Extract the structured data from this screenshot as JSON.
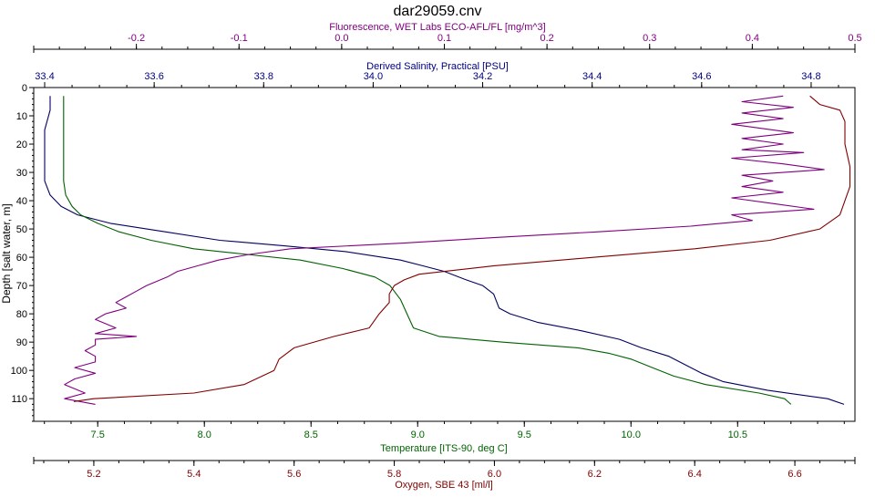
{
  "chart_data": {
    "type": "line",
    "title": "dar29059.cnv",
    "y_axis": {
      "label": "Depth [salt water, m]",
      "range": [
        0,
        118
      ],
      "inverted": true,
      "ticks": [
        0,
        10,
        20,
        30,
        40,
        50,
        60,
        70,
        80,
        90,
        100,
        110
      ]
    },
    "x_axes": [
      {
        "id": "fluor",
        "label": "Fluorescence, WET Labs ECO-AFL/FL [mg/m^3]",
        "position": "top-outer",
        "color": "#800080",
        "range": [
          -0.3,
          0.5
        ],
        "ticks": [
          -0.2,
          -0.1,
          0.0,
          0.1,
          0.2,
          0.3,
          0.4,
          0.5
        ],
        "tick_labels": [
          "-0.2",
          "-0.1",
          "0.0",
          "0.1",
          "0.2",
          "0.3",
          "0.4",
          "0.5"
        ]
      },
      {
        "id": "sal",
        "label": "Derived Salinity, Practical [PSU]",
        "position": "top-inner",
        "color": "#000080",
        "range": [
          33.38,
          34.88
        ],
        "ticks": [
          33.4,
          33.6,
          33.8,
          34.0,
          34.2,
          34.4,
          34.6,
          34.8
        ],
        "tick_labels": [
          "33.4",
          "33.6",
          "33.8",
          "34.0",
          "34.2",
          "34.4",
          "34.6",
          "34.8"
        ]
      },
      {
        "id": "temp",
        "label": "Temperature [ITS-90, deg C]",
        "position": "bottom-inner",
        "color": "#006400",
        "range": [
          7.2,
          11.05
        ],
        "ticks": [
          7.5,
          8.0,
          8.5,
          9.0,
          9.5,
          10.0,
          10.5
        ],
        "tick_labels": [
          "7.5",
          "8.0",
          "8.5",
          "9.0",
          "9.5",
          "10.0",
          "10.5"
        ]
      },
      {
        "id": "oxy",
        "label": "Oxygen, SBE 43 [ml/l]",
        "position": "bottom-outer",
        "color": "#800000",
        "range": [
          5.08,
          6.72
        ],
        "ticks": [
          5.2,
          5.4,
          5.6,
          5.8,
          6.0,
          6.2,
          6.4,
          6.6
        ],
        "tick_labels": [
          "5.2",
          "5.4",
          "5.6",
          "5.8",
          "6.0",
          "6.2",
          "6.4",
          "6.6"
        ]
      }
    ],
    "series": [
      {
        "axis": "sal",
        "color": "#000060",
        "points": [
          [
            33.41,
            3
          ],
          [
            33.41,
            8
          ],
          [
            33.4,
            15
          ],
          [
            33.4,
            25
          ],
          [
            33.4,
            33
          ],
          [
            33.41,
            38
          ],
          [
            33.43,
            42
          ],
          [
            33.46,
            45
          ],
          [
            33.52,
            48
          ],
          [
            33.62,
            51
          ],
          [
            33.72,
            54
          ],
          [
            33.84,
            56
          ],
          [
            33.95,
            58
          ],
          [
            34.05,
            61
          ],
          [
            34.09,
            63
          ],
          [
            34.13,
            65
          ],
          [
            34.17,
            68
          ],
          [
            34.2,
            70
          ],
          [
            34.22,
            73
          ],
          [
            34.23,
            78
          ],
          [
            34.25,
            80
          ],
          [
            34.3,
            83
          ],
          [
            34.38,
            86
          ],
          [
            34.45,
            89
          ],
          [
            34.49,
            92
          ],
          [
            34.54,
            95
          ],
          [
            34.57,
            98
          ],
          [
            34.6,
            101
          ],
          [
            34.64,
            104
          ],
          [
            34.72,
            107
          ],
          [
            34.83,
            110
          ],
          [
            34.86,
            112
          ]
        ]
      },
      {
        "axis": "temp",
        "color": "#006000",
        "points": [
          [
            7.34,
            3
          ],
          [
            7.34,
            8
          ],
          [
            7.34,
            15
          ],
          [
            7.34,
            25
          ],
          [
            7.34,
            33
          ],
          [
            7.35,
            38
          ],
          [
            7.38,
            42
          ],
          [
            7.42,
            45
          ],
          [
            7.5,
            48
          ],
          [
            7.6,
            51
          ],
          [
            7.75,
            54
          ],
          [
            7.95,
            57
          ],
          [
            8.2,
            59
          ],
          [
            8.45,
            61
          ],
          [
            8.65,
            64
          ],
          [
            8.8,
            67
          ],
          [
            8.87,
            70
          ],
          [
            8.92,
            75
          ],
          [
            8.95,
            80
          ],
          [
            8.98,
            85
          ],
          [
            9.1,
            88
          ],
          [
            9.4,
            90
          ],
          [
            9.75,
            92
          ],
          [
            9.9,
            94
          ],
          [
            10.0,
            96
          ],
          [
            10.1,
            99
          ],
          [
            10.2,
            102
          ],
          [
            10.35,
            105
          ],
          [
            10.6,
            108
          ],
          [
            10.72,
            110
          ],
          [
            10.75,
            112
          ]
        ]
      },
      {
        "axis": "fluor",
        "color": "#800080",
        "points": [
          [
            0.43,
            3
          ],
          [
            0.39,
            5
          ],
          [
            0.44,
            7
          ],
          [
            0.39,
            9
          ],
          [
            0.43,
            11
          ],
          [
            0.38,
            13
          ],
          [
            0.44,
            16
          ],
          [
            0.39,
            18
          ],
          [
            0.43,
            20
          ],
          [
            0.39,
            22
          ],
          [
            0.45,
            23
          ],
          [
            0.38,
            25
          ],
          [
            0.43,
            27
          ],
          [
            0.47,
            29
          ],
          [
            0.39,
            31
          ],
          [
            0.42,
            33
          ],
          [
            0.39,
            35
          ],
          [
            0.43,
            37
          ],
          [
            0.38,
            39
          ],
          [
            0.42,
            41
          ],
          [
            0.46,
            43
          ],
          [
            0.38,
            45
          ],
          [
            0.4,
            47
          ],
          [
            0.34,
            49
          ],
          [
            0.25,
            51
          ],
          [
            0.15,
            53
          ],
          [
            0.06,
            55
          ],
          [
            -0.05,
            57
          ],
          [
            -0.09,
            59
          ],
          [
            -0.12,
            61
          ],
          [
            -0.14,
            63
          ],
          [
            -0.16,
            65
          ],
          [
            -0.17,
            67
          ],
          [
            -0.19,
            70
          ],
          [
            -0.2,
            72
          ],
          [
            -0.21,
            74
          ],
          [
            -0.22,
            76
          ],
          [
            -0.21,
            78
          ],
          [
            -0.23,
            80
          ],
          [
            -0.24,
            82
          ],
          [
            -0.22,
            85
          ],
          [
            -0.24,
            87
          ],
          [
            -0.2,
            88
          ],
          [
            -0.24,
            89
          ],
          [
            -0.24,
            91
          ],
          [
            -0.25,
            93
          ],
          [
            -0.24,
            95
          ],
          [
            -0.24,
            97
          ],
          [
            -0.26,
            99
          ],
          [
            -0.24,
            101
          ],
          [
            -0.26,
            103
          ],
          [
            -0.27,
            105
          ],
          [
            -0.25,
            108
          ],
          [
            -0.27,
            110
          ],
          [
            -0.24,
            112
          ]
        ]
      },
      {
        "axis": "oxy",
        "color": "#800000",
        "points": [
          [
            6.63,
            3
          ],
          [
            6.65,
            6
          ],
          [
            6.69,
            8
          ],
          [
            6.7,
            12
          ],
          [
            6.7,
            20
          ],
          [
            6.71,
            28
          ],
          [
            6.71,
            35
          ],
          [
            6.7,
            40
          ],
          [
            6.69,
            45
          ],
          [
            6.65,
            50
          ],
          [
            6.55,
            54
          ],
          [
            6.4,
            57
          ],
          [
            6.2,
            60
          ],
          [
            6.0,
            63
          ],
          [
            5.85,
            66
          ],
          [
            5.82,
            68
          ],
          [
            5.8,
            70
          ],
          [
            5.79,
            73
          ],
          [
            5.79,
            76
          ],
          [
            5.77,
            80
          ],
          [
            5.75,
            85
          ],
          [
            5.68,
            88
          ],
          [
            5.6,
            92
          ],
          [
            5.57,
            96
          ],
          [
            5.56,
            100
          ],
          [
            5.5,
            105
          ],
          [
            5.4,
            108
          ],
          [
            5.2,
            110
          ],
          [
            5.16,
            111
          ]
        ]
      }
    ]
  }
}
